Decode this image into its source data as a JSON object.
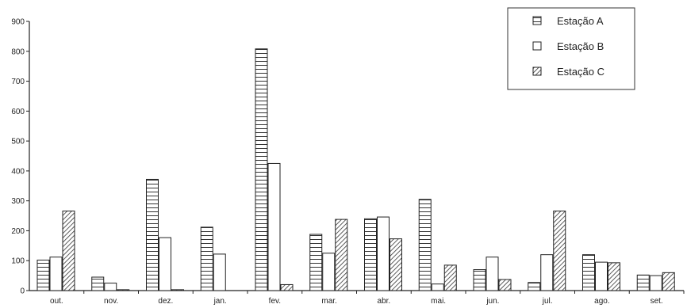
{
  "chart_data": {
    "type": "bar",
    "categories": [
      "out.",
      "nov.",
      "dez.",
      "jan.",
      "fev.",
      "mar.",
      "abr.",
      "mai.",
      "jun.",
      "jul.",
      "ago.",
      "set."
    ],
    "series": [
      {
        "name": "Estação A",
        "pattern": "horizontal-lines",
        "values": [
          102,
          45,
          372,
          212,
          808,
          188,
          240,
          305,
          70,
          27,
          120,
          52
        ]
      },
      {
        "name": "Estação B",
        "pattern": "empty",
        "values": [
          112,
          25,
          177,
          122,
          425,
          125,
          246,
          22,
          112,
          120,
          95,
          50
        ]
      },
      {
        "name": "Estação C",
        "pattern": "diagonal-hatch",
        "values": [
          266,
          3,
          3,
          0,
          20,
          238,
          173,
          85,
          37,
          266,
          93,
          60
        ]
      }
    ],
    "yticks": [
      0,
      100,
      200,
      300,
      400,
      500,
      600,
      700,
      800,
      900
    ],
    "ylim": [
      0,
      900
    ],
    "legend_position": "top-right",
    "grid": false,
    "bar_stroke_color": "#222222"
  }
}
